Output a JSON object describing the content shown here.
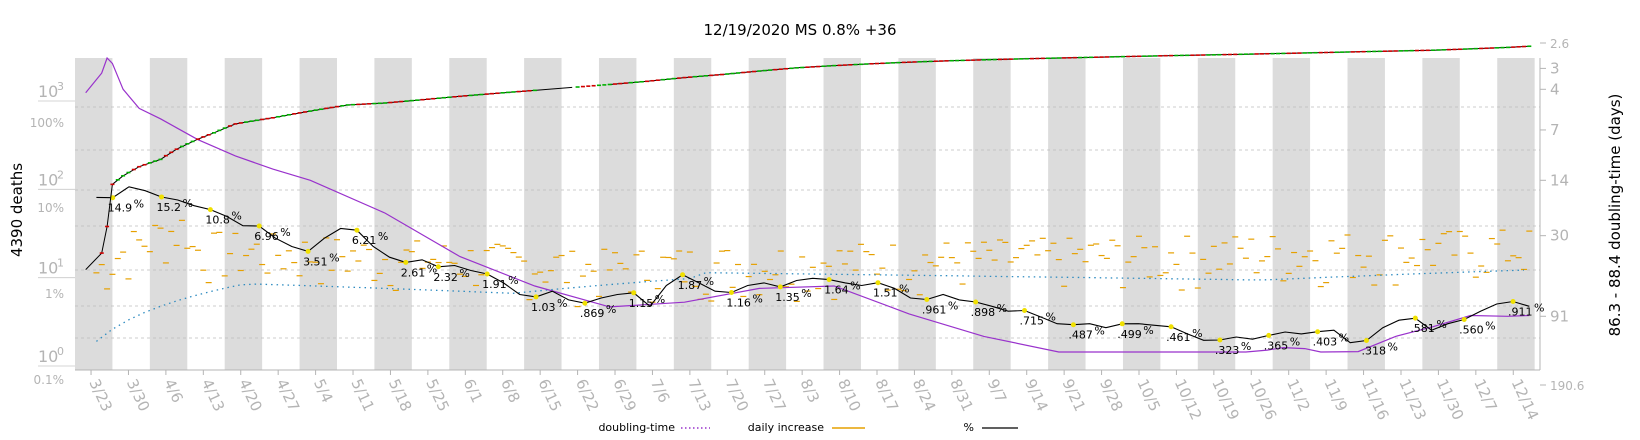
{
  "chart_data": {
    "type": "line",
    "title": "12/19/2020 MS 0.8% +36",
    "ylabel_left": "4390 deaths",
    "ylabel_right": "86.3 - 88.4 doubling-time (days)",
    "x_tick_labels": [
      "3/23",
      "3/30",
      "4/6",
      "4/13",
      "4/20",
      "4/27",
      "5/4",
      "5/11",
      "5/18",
      "5/25",
      "6/1",
      "6/8",
      "6/15",
      "6/22",
      "6/29",
      "7/6",
      "7/13",
      "7/20",
      "7/27",
      "8/3",
      "8/10",
      "8/17",
      "8/24",
      "8/31",
      "9/7",
      "9/14",
      "9/21",
      "9/28",
      "10/5",
      "10/12",
      "10/19",
      "10/26",
      "11/2",
      "11/9",
      "11/16",
      "11/23",
      "11/30",
      "12/7",
      "12/14"
    ],
    "y_left_ticks": [
      {
        "label": "10",
        "sup": "0",
        "value": 1
      },
      {
        "label": "10",
        "sup": "1",
        "value": 10
      },
      {
        "label": "10",
        "sup": "2",
        "value": 100
      },
      {
        "label": "10",
        "sup": "3",
        "value": 1000
      }
    ],
    "y_pct_ticks": [
      "0.1%",
      "1%",
      "10%",
      "100%"
    ],
    "y_right_ticks": [
      "2.6",
      "3",
      "4",
      "7",
      "14",
      "30",
      "91",
      "190.6"
    ],
    "legend": [
      {
        "name": "doubling-time",
        "color": "#9932cc",
        "style": "dotted"
      },
      {
        "name": "daily increase",
        "color": "#e6a000",
        "style": "solid"
      },
      {
        "name": "%",
        "color": "#000000",
        "style": "solid"
      }
    ],
    "cumulative_deaths": {
      "day_offsets": [
        0,
        3,
        4,
        5,
        7,
        10,
        14,
        17,
        21,
        24,
        28,
        35,
        42,
        49,
        56,
        63,
        70,
        77,
        84,
        91,
        98,
        105,
        112,
        119,
        126,
        133,
        140,
        147,
        154,
        161,
        168,
        175,
        182,
        189,
        196,
        203,
        210,
        217,
        224,
        231,
        238,
        245,
        252,
        259,
        266,
        270
      ],
      "values": [
        13,
        20,
        40,
        120,
        150,
        190,
        230,
        300,
        390,
        460,
        580,
        680,
        810,
        950,
        1000,
        1090,
        1190,
        1290,
        1390,
        1500,
        1620,
        1760,
        1940,
        2100,
        2300,
        2500,
        2650,
        2780,
        2900,
        3000,
        3080,
        3160,
        3230,
        3300,
        3370,
        3440,
        3500,
        3570,
        3640,
        3720,
        3800,
        3880,
        3960,
        4100,
        4260,
        4390
      ]
    },
    "daily_percent_labels": [
      {
        "day": 3,
        "label": "14.9"
      },
      {
        "day": 10,
        "label": "15.2"
      },
      {
        "day": 17,
        "label": "10.8"
      },
      {
        "day": 24,
        "label": "6.96"
      },
      {
        "day": 31,
        "label": "3.51"
      },
      {
        "day": 38,
        "label": "6.21"
      },
      {
        "day": 45,
        "label": "2.61"
      },
      {
        "day": 52,
        "label": "2.32"
      },
      {
        "day": 59,
        "label": "1.91"
      },
      {
        "day": 66,
        "label": "1.03"
      },
      {
        "day": 73,
        "label": ".869"
      },
      {
        "day": 80,
        "label": "1.15"
      },
      {
        "day": 87,
        "label": "1.87"
      },
      {
        "day": 94,
        "label": "1.16"
      },
      {
        "day": 101,
        "label": "1.35"
      },
      {
        "day": 108,
        "label": "1.64"
      },
      {
        "day": 115,
        "label": "1.51"
      },
      {
        "day": 122,
        "label": ".961"
      },
      {
        "day": 129,
        "label": ".898"
      },
      {
        "day": 136,
        "label": ".715"
      },
      {
        "day": 143,
        "label": ".487"
      },
      {
        "day": 150,
        "label": ".499"
      },
      {
        "day": 157,
        "label": ".461"
      },
      {
        "day": 164,
        "label": ".323"
      },
      {
        "day": 171,
        "label": ".365"
      },
      {
        "day": 178,
        "label": ".403"
      },
      {
        "day": 185,
        "label": ".318"
      },
      {
        "day": 192,
        "label": ".581"
      },
      {
        "day": 199,
        "label": ".560"
      },
      {
        "day": 206,
        "label": ".911"
      }
    ],
    "daily_percent_values": [
      15,
      14.9,
      20,
      18,
      15.2,
      14,
      12,
      10.8,
      9,
      7,
      6.96,
      5,
      4,
      3.51,
      5,
      6.5,
      6.21,
      4,
      3,
      2.61,
      2.8,
      2.32,
      2.4,
      2.1,
      1.91,
      1.5,
      1.1,
      1.03,
      1.2,
      0.95,
      0.869,
      1.0,
      1.1,
      1.15,
      0.8,
      1.4,
      1.87,
      1.5,
      1.2,
      1.16,
      1.4,
      1.5,
      1.35,
      1.6,
      1.7,
      1.64,
      1.5,
      1.4,
      1.51,
      1.3,
      1.0,
      0.961,
      1.1,
      0.95,
      0.898,
      0.8,
      0.7,
      0.715,
      0.6,
      0.5,
      0.487,
      0.5,
      0.45,
      0.499,
      0.5,
      0.48,
      0.461,
      0.38,
      0.32,
      0.323,
      0.35,
      0.33,
      0.365,
      0.4,
      0.38,
      0.403,
      0.42,
      0.3,
      0.318,
      0.45,
      0.55,
      0.581,
      0.42,
      0.5,
      0.56,
      0.7,
      0.85,
      0.911,
      0.8
    ],
    "doubling_time_days": {
      "day_offsets": [
        0,
        3,
        4,
        5,
        7,
        10,
        14,
        17,
        21,
        28,
        35,
        42,
        56,
        70,
        84,
        98,
        112,
        126,
        140,
        154,
        168,
        182,
        189,
        196,
        203,
        210,
        214,
        217,
        221,
        224,
        228,
        231,
        238,
        245,
        252,
        259,
        266,
        270
      ],
      "values": [
        4.2,
        3.2,
        2.6,
        2.8,
        4.0,
        5.2,
        6.0,
        6.8,
        8,
        10,
        12,
        14,
        22,
        40,
        60,
        80,
        75,
        62,
        60,
        88,
        120,
        175,
        190,
        180,
        170,
        160,
        155,
        150,
        145,
        140,
        142,
        150,
        148,
        120,
        105,
        90,
        91,
        90
      ]
    }
  }
}
